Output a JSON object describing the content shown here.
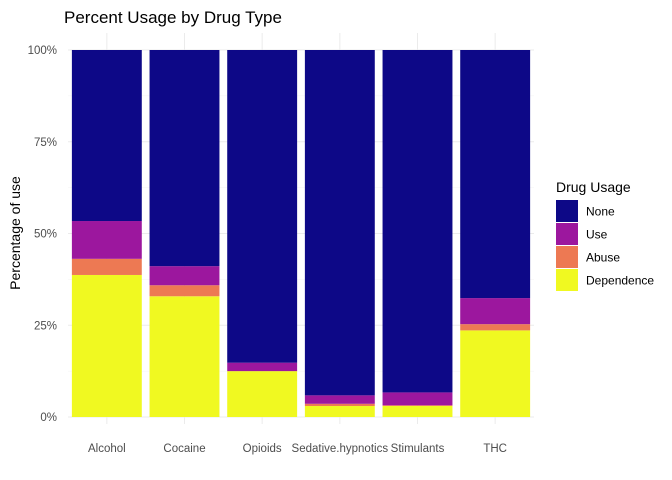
{
  "chart_data": {
    "type": "bar",
    "stacked": true,
    "title": "Percent Usage by Drug Type",
    "xlabel": "",
    "ylabel": "Percentage of use",
    "ylim": [
      0,
      1
    ],
    "y_ticks": [
      "0%",
      "25%",
      "50%",
      "75%",
      "100%"
    ],
    "y_tick_values": [
      0,
      0.25,
      0.5,
      0.75,
      1
    ],
    "grid": true,
    "legend_position": "right",
    "legend_title": "Drug Usage",
    "categories": [
      "Alcohol",
      "Cocaine",
      "Opioids",
      "Sedative.hypnotics",
      "Stimulants",
      "THC"
    ],
    "series": [
      {
        "name": "Dependence",
        "color": "#F0F921",
        "values": [
          0.387,
          0.329,
          0.125,
          0.03,
          0.03,
          0.236
        ]
      },
      {
        "name": "Abuse",
        "color": "#ED7953",
        "values": [
          0.044,
          0.03,
          0.0,
          0.006,
          0.002,
          0.017
        ]
      },
      {
        "name": "Use",
        "color": "#9C179E",
        "values": [
          0.103,
          0.052,
          0.023,
          0.023,
          0.035,
          0.071
        ]
      },
      {
        "name": "None",
        "color": "#0D0887",
        "values": [
          0.466,
          0.589,
          0.852,
          0.941,
          0.933,
          0.676
        ]
      }
    ],
    "legend_order": [
      "None",
      "Use",
      "Abuse",
      "Dependence"
    ]
  }
}
